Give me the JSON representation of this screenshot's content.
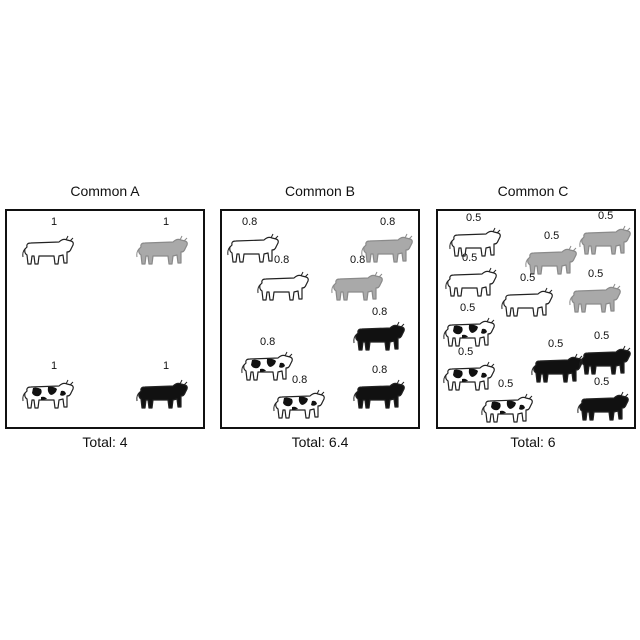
{
  "panels": [
    {
      "title": "Common A",
      "total": "Total: 4",
      "cows": [
        {
          "color": "white",
          "label": "1"
        },
        {
          "color": "gray",
          "label": "1"
        },
        {
          "color": "spotted",
          "label": "1"
        },
        {
          "color": "black",
          "label": "1"
        }
      ]
    },
    {
      "title": "Common B",
      "total": "Total: 6.4",
      "cows": [
        {
          "color": "white",
          "label": "0.8"
        },
        {
          "color": "gray",
          "label": "0.8"
        },
        {
          "color": "white",
          "label": "0.8"
        },
        {
          "color": "gray",
          "label": "0.8"
        },
        {
          "color": "black",
          "label": "0.8"
        },
        {
          "color": "spotted",
          "label": "0.8"
        },
        {
          "color": "spotted",
          "label": "0.8"
        },
        {
          "color": "black",
          "label": "0.8"
        }
      ]
    },
    {
      "title": "Common C",
      "total": "Total: 6",
      "cows": [
        {
          "color": "white",
          "label": "0.5"
        },
        {
          "color": "gray",
          "label": "0.5"
        },
        {
          "color": "gray",
          "label": "0.5"
        },
        {
          "color": "white",
          "label": "0.5"
        },
        {
          "color": "white",
          "label": "0.5"
        },
        {
          "color": "gray",
          "label": "0.5"
        },
        {
          "color": "spotted",
          "label": "0.5"
        },
        {
          "color": "spotted",
          "label": "0.5"
        },
        {
          "color": "black",
          "label": "0.5"
        },
        {
          "color": "black",
          "label": "0.5"
        },
        {
          "color": "spotted",
          "label": "0.5"
        },
        {
          "color": "black",
          "label": "0.5"
        }
      ]
    }
  ],
  "colors": {
    "white": "#ffffff",
    "gray": "#a9a9a9",
    "black": "#111111",
    "outline": "#222222"
  }
}
